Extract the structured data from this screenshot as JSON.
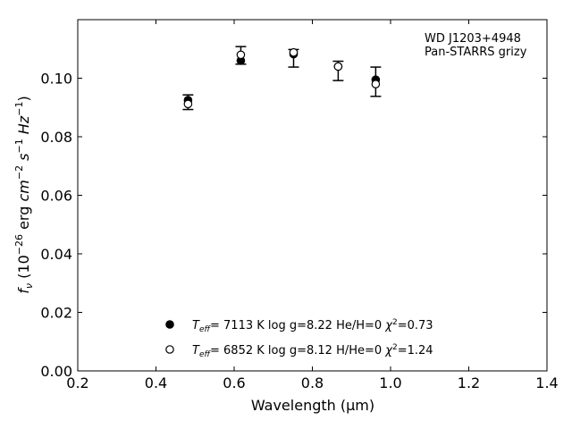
{
  "chart_data": {
    "type": "scatter",
    "annotation": [
      "WD J1203+4948",
      "Pan-STARRS grizy"
    ],
    "xlabel": {
      "text": "Wavelength (",
      "sym": "μ",
      "unit": "m)"
    },
    "ylabel": {
      "pre": "f",
      "sub": "ν",
      "mid": " (10",
      "exp": "−26",
      "post": " erg ",
      "cm": "cm",
      "cm_exp": "−2",
      "s": " s",
      "s_exp": "−1",
      "hz": " Hz",
      "hz_exp": "−1",
      "close": ")"
    },
    "xlim": [
      0.2,
      1.4
    ],
    "ylim": [
      0.0,
      0.12
    ],
    "xticks": [
      0.2,
      0.4,
      0.6,
      0.8,
      1.0,
      1.2,
      1.4
    ],
    "xtick_labels": [
      "0.2",
      "0.4",
      "0.6",
      "0.8",
      "1.0",
      "1.2",
      "1.4"
    ],
    "yticks": [
      0.0,
      0.02,
      0.04,
      0.06,
      0.08,
      0.1
    ],
    "ytick_labels": [
      "0.00",
      "0.02",
      "0.04",
      "0.06",
      "0.08",
      "0.10"
    ],
    "observed": {
      "x": [
        0.482,
        0.617,
        0.752,
        0.866,
        0.962
      ],
      "y": [
        0.0918,
        0.1078,
        0.1068,
        0.1025,
        0.0988
      ],
      "yerr": [
        0.0025,
        0.003,
        0.003,
        0.0033,
        0.005
      ]
    },
    "series": [
      {
        "marker": "filled",
        "x": [
          0.482,
          0.617,
          0.752,
          0.866,
          0.962
        ],
        "y": [
          0.0925,
          0.106,
          0.1082,
          0.104,
          0.0995
        ],
        "legend": {
          "teff_label": "T",
          "teff_sub": "eff",
          "text": "=  7113 K  log g=8.22  He/H=0  ",
          "chi": "χ",
          "chi_exp": "2",
          "chi_val": "=0.73"
        }
      },
      {
        "marker": "open",
        "x": [
          0.482,
          0.617,
          0.752,
          0.866,
          0.962
        ],
        "y": [
          0.0912,
          0.108,
          0.1088,
          0.104,
          0.098
        ],
        "legend": {
          "teff_label": "T",
          "teff_sub": "eff",
          "text": "=  6852 K  log g=8.12  H/He=0  ",
          "chi": "χ",
          "chi_exp": "2",
          "chi_val": "=1.24"
        }
      }
    ],
    "colors": {
      "axis": "#000000",
      "marker": "#000000",
      "background": "#ffffff"
    }
  }
}
